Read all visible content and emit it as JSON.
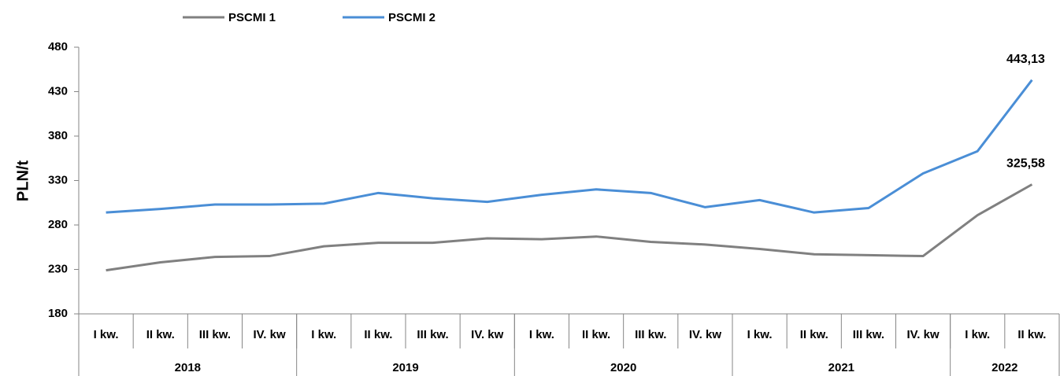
{
  "chart_data": {
    "type": "line",
    "y_label": "PLN/t",
    "category_groups": [
      {
        "label": "2018",
        "categories": [
          "I kw.",
          "II kw.",
          "III kw.",
          "IV. kw"
        ]
      },
      {
        "label": "2019",
        "categories": [
          "I kw.",
          "II kw.",
          "III kw.",
          "IV. kw"
        ]
      },
      {
        "label": "2020",
        "categories": [
          "I kw.",
          "II kw.",
          "III kw.",
          "IV. kw"
        ]
      },
      {
        "label": "2021",
        "categories": [
          "I kw.",
          "II kw.",
          "III kw.",
          "IV. kw"
        ]
      },
      {
        "label": "2022",
        "categories": [
          "I kw.",
          "II kw."
        ]
      }
    ],
    "series": [
      {
        "name": "PSCMI 1",
        "color": "#808080",
        "values": [
          229,
          238,
          244,
          245,
          256,
          260,
          260,
          265,
          264,
          267,
          261,
          258,
          253,
          247,
          246,
          245,
          291,
          325.58
        ],
        "value_labels": [
          null,
          null,
          null,
          null,
          null,
          null,
          null,
          null,
          null,
          null,
          null,
          null,
          null,
          null,
          null,
          null,
          null,
          "325,58"
        ]
      },
      {
        "name": "PSCMI 2",
        "color": "#4a8ed6",
        "values": [
          294,
          298,
          303,
          303,
          304,
          316,
          310,
          306,
          314,
          320,
          316,
          300,
          308,
          294,
          299,
          338,
          363,
          443.13
        ],
        "value_labels": [
          null,
          null,
          null,
          null,
          null,
          null,
          null,
          null,
          null,
          null,
          null,
          null,
          null,
          null,
          null,
          null,
          null,
          "443,13"
        ]
      }
    ],
    "ylim": [
      180,
      480
    ],
    "yticks": [
      180,
      230,
      280,
      330,
      380,
      430,
      480
    ],
    "grid": false,
    "legend": "top"
  }
}
